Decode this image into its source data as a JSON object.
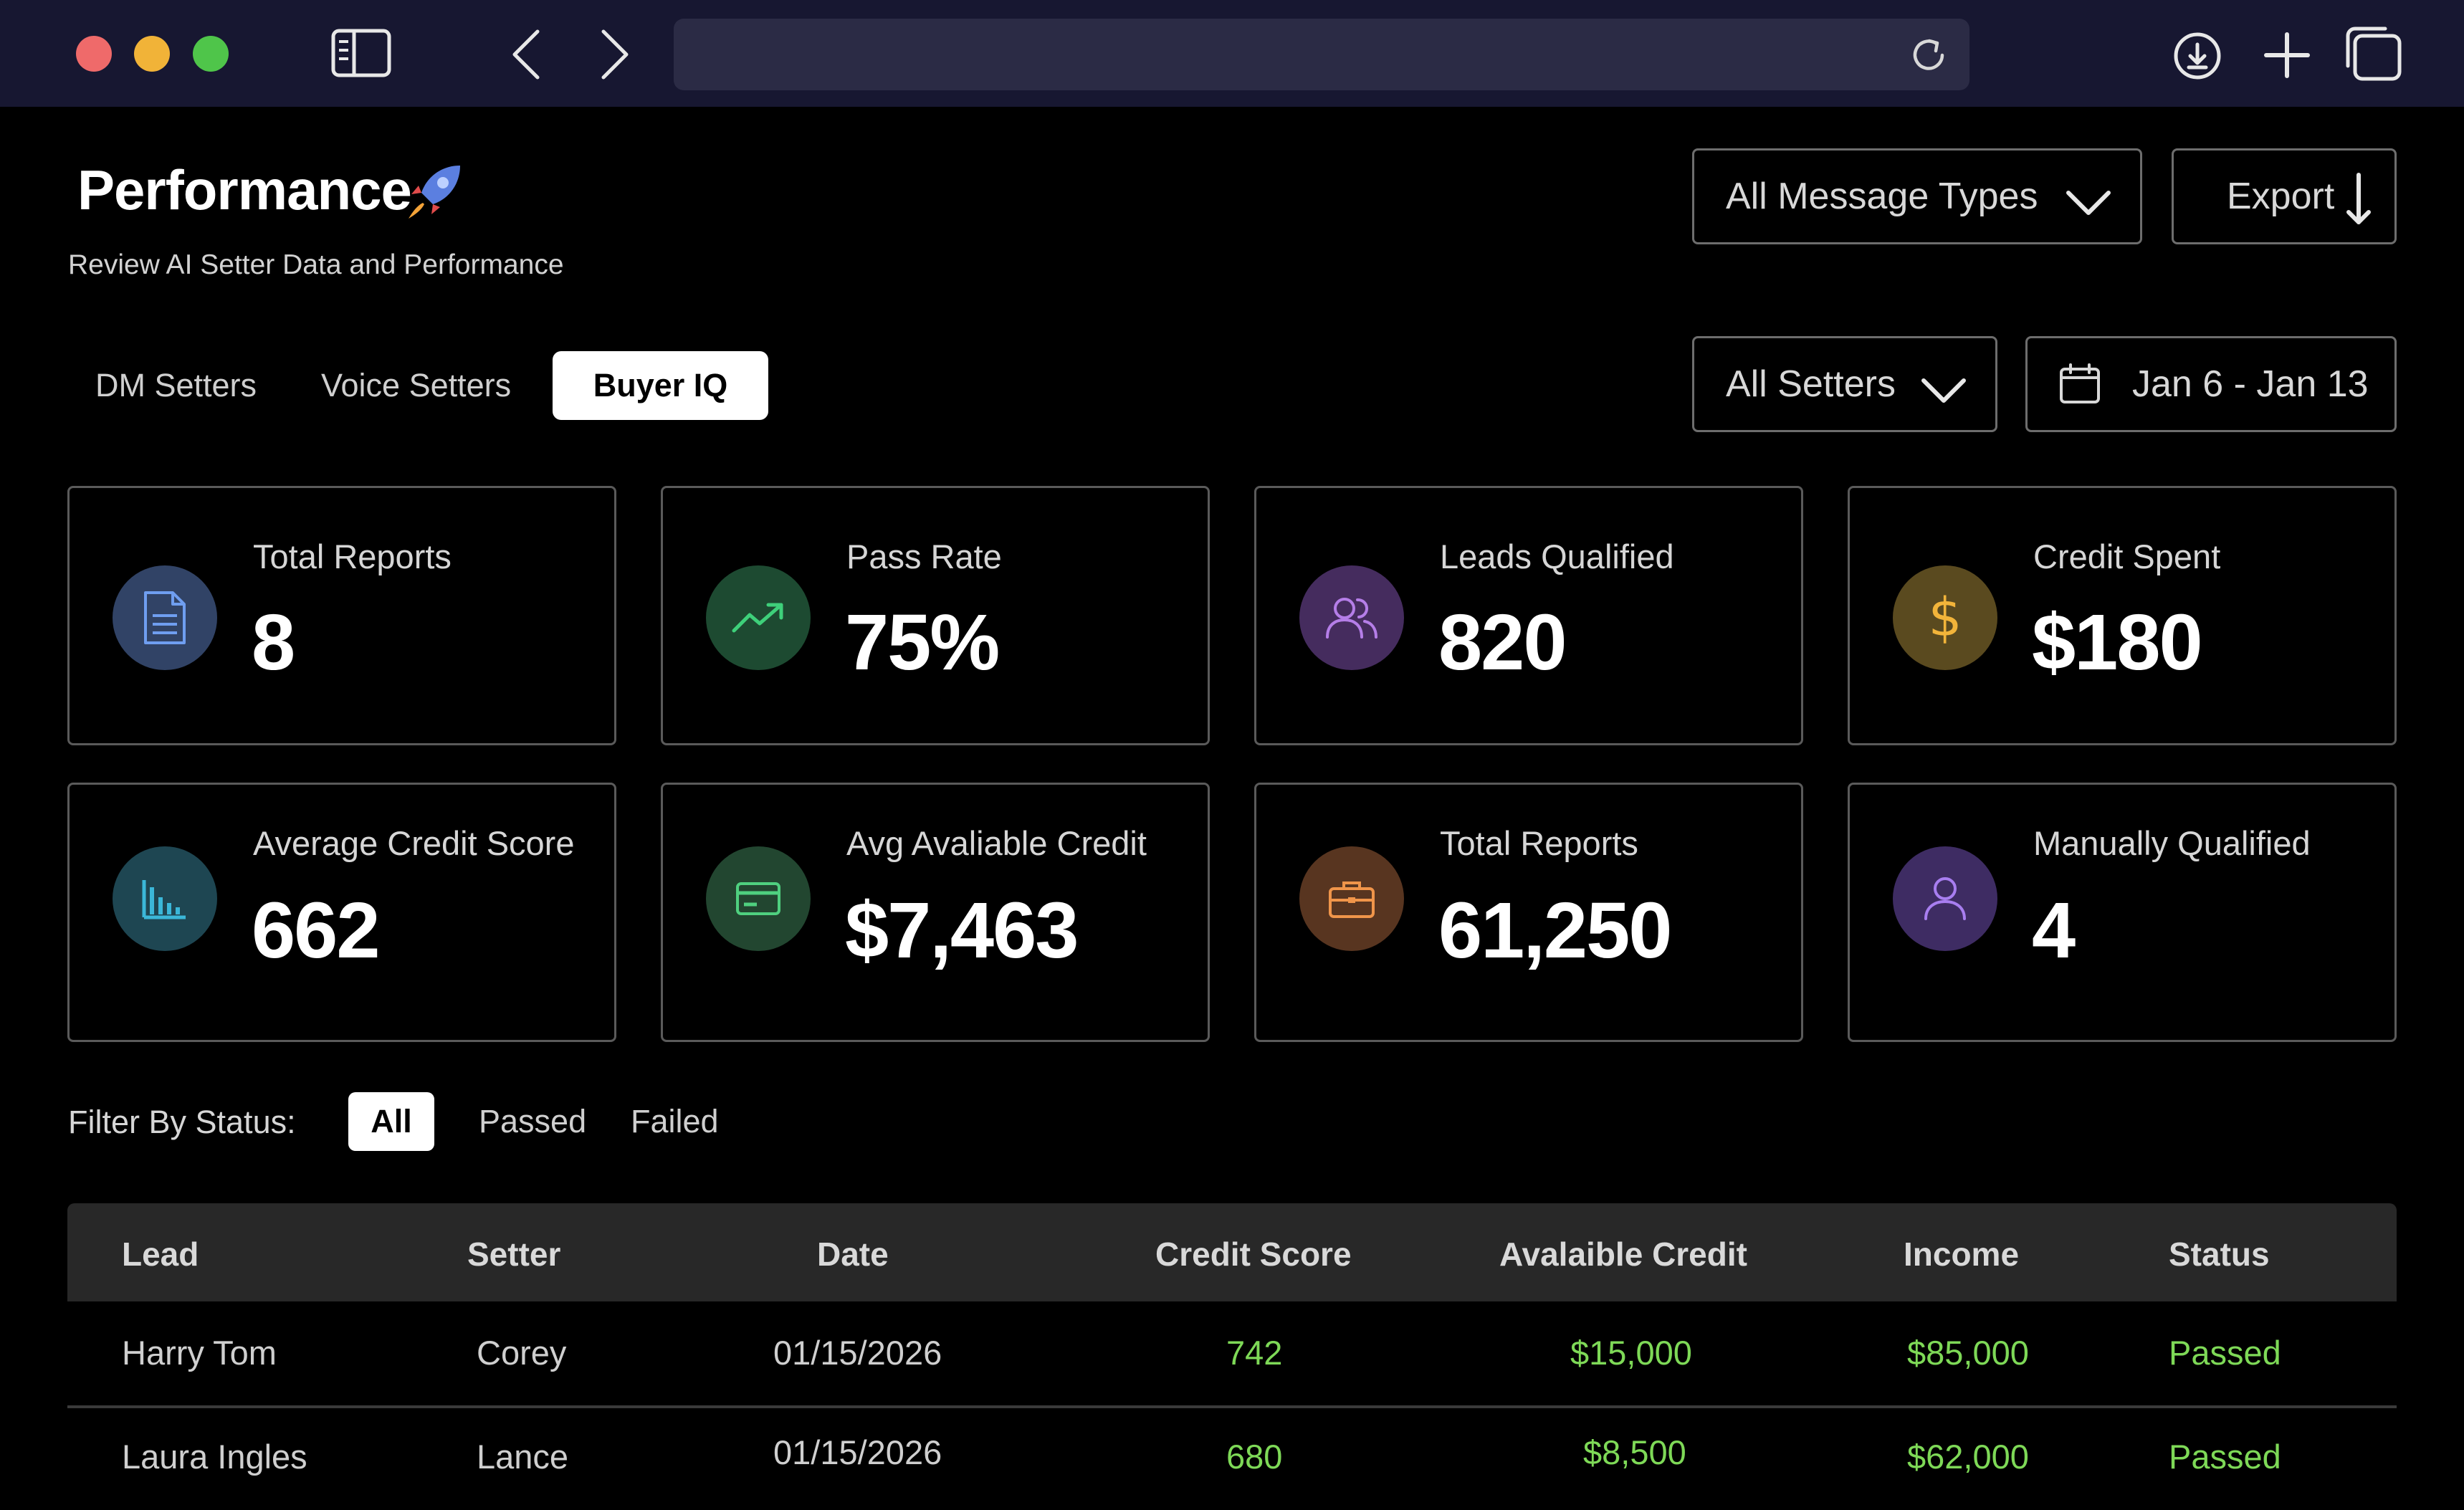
{
  "browser": {
    "url": ""
  },
  "header": {
    "title": "Performance",
    "subtitle": "Review AI Setter Data and Performance",
    "message_filter": "All Message Types",
    "export_label": "Export",
    "setter_filter": "All Setters",
    "date_range": "Jan 6 -  Jan 13"
  },
  "tabs": [
    {
      "label": "DM Setters",
      "active": false
    },
    {
      "label": "Voice Setters",
      "active": false
    },
    {
      "label": "Buyer IQ",
      "active": true
    }
  ],
  "stats": [
    {
      "label": "Total Reports",
      "value": "8",
      "icon": "document-icon",
      "color": "#3a4f7a"
    },
    {
      "label": "Pass Rate",
      "value": "75%",
      "icon": "trending-up-icon",
      "color": "#1f4d33"
    },
    {
      "label": "Leads Qualified",
      "value": "820",
      "icon": "users-icon",
      "color": "#4a2f63"
    },
    {
      "label": "Credit Spent",
      "value": "$180",
      "icon": "dollar-icon",
      "color": "#5a4a1f"
    },
    {
      "label": "Average Credit Score",
      "value": "662",
      "icon": "bar-chart-icon",
      "color": "#1e4a55"
    },
    {
      "label": "Avg Avaliable Credit",
      "value": "$7,463",
      "icon": "credit-card-icon",
      "color": "#244a33"
    },
    {
      "label": "Total Reports",
      "value": "61,250",
      "icon": "briefcase-icon",
      "color": "#5a3620"
    },
    {
      "label": "Manually Qualified",
      "value": "4",
      "icon": "user-icon",
      "color": "#3f2e66"
    }
  ],
  "filter": {
    "label": "Filter By Status:",
    "options": [
      "All",
      "Passed",
      "Failed"
    ],
    "active": "All"
  },
  "table": {
    "columns": [
      "Lead",
      "Setter",
      "Date",
      "Credit Score",
      "Avalaible Credit",
      "Income",
      "Status"
    ],
    "rows": [
      [
        "Harry Tom",
        "Corey",
        "01/15/2026",
        "742",
        "$15,000",
        "$85,000",
        "Passed"
      ],
      [
        "Laura Ingles",
        "Lance",
        "01/15/2026",
        "680",
        "$8,500",
        "$62,000",
        "Passed"
      ]
    ]
  },
  "colors": {
    "accent_green": "#7ed957",
    "chrome_bg": "#171731",
    "table_header_bg": "#282828"
  }
}
